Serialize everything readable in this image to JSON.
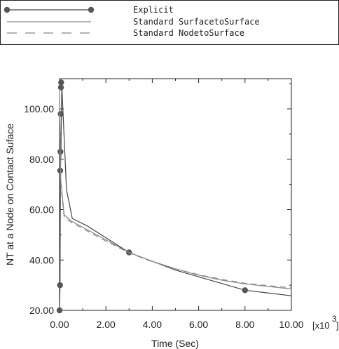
{
  "chart_data": {
    "type": "line",
    "xlabel": "Time (Sec)",
    "ylabel": "NT at a Node on Contact Suface",
    "x_multiplier_label": "[x10",
    "x_multiplier_exp": "3",
    "x_multiplier_close": "]",
    "xlim": [
      0,
      10
    ],
    "ylim": [
      20,
      112
    ],
    "x_ticks": [
      0,
      2,
      4,
      6,
      8,
      10
    ],
    "x_tick_labels": [
      "0.00",
      "2.00",
      "4.00",
      "6.00",
      "8.00",
      "10.00"
    ],
    "y_ticks": [
      20,
      40,
      60,
      80,
      100
    ],
    "y_tick_labels": [
      "20.00",
      "40.00",
      "60.00",
      "80.00",
      "100.00"
    ],
    "grid": false,
    "legend_position": "top-left outside",
    "series": [
      {
        "name": "Explicit",
        "style": "solid-markers",
        "color": "#444444",
        "x": [
          0,
          0.02,
          0.04,
          0.06,
          0.08,
          0.1,
          0.3,
          0.55,
          1.2,
          3.0,
          5.0,
          8.0,
          10.0
        ],
        "y": [
          20,
          30,
          75.5,
          83,
          98,
          109,
          68,
          56.5,
          53.5,
          43,
          36,
          28,
          25.8
        ],
        "markers": [
          [
            0,
            20
          ],
          [
            0.02,
            30
          ],
          [
            0.03,
            75.5
          ],
          [
            0.04,
            83
          ],
          [
            0.05,
            98
          ],
          [
            0.06,
            108.5
          ],
          [
            0.07,
            110.5
          ],
          [
            3.0,
            43
          ],
          [
            8.0,
            28
          ]
        ]
      },
      {
        "name": "Standard SurfacetoSurface",
        "style": "solid",
        "color": "#888888",
        "x": [
          0,
          0.05,
          0.2,
          0.5,
          1.0,
          2.0,
          3.0,
          4.0,
          5.0,
          6.0,
          7.0,
          8.0,
          9.0,
          10.0
        ],
        "y": [
          108,
          72,
          58,
          55.5,
          53,
          48,
          43,
          39.5,
          36.5,
          34,
          32,
          30.5,
          29.5,
          28.5
        ],
        "markers": []
      },
      {
        "name": "Standard NodetoSurface",
        "style": "dashed",
        "color": "#888888",
        "x": [
          0,
          0.05,
          0.2,
          0.5,
          1.0,
          2.0,
          3.0,
          4.0,
          5.0,
          6.0,
          7.0,
          8.0,
          9.0,
          10.0
        ],
        "y": [
          106,
          70,
          57,
          55,
          52.5,
          47.5,
          42.8,
          39.3,
          36.5,
          34.2,
          32.3,
          30.8,
          29.8,
          29
        ],
        "markers": []
      }
    ]
  }
}
